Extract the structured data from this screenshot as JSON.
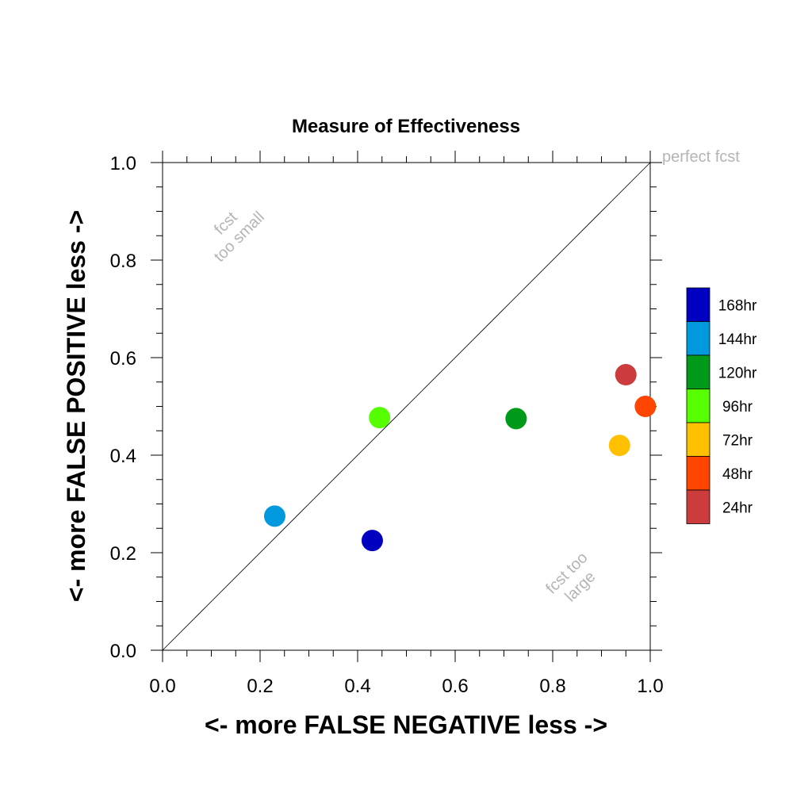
{
  "chart_data": {
    "type": "scatter",
    "title": "Measure of Effectiveness",
    "xlabel": "<- more   FALSE NEGATIVE   less ->",
    "ylabel": "<- more   FALSE POSITIVE   less ->",
    "xlim": [
      0.0,
      1.0
    ],
    "ylim": [
      0.0,
      1.0
    ],
    "x_ticks": [
      "0.0",
      "0.2",
      "0.4",
      "0.6",
      "0.8",
      "1.0"
    ],
    "y_ticks": [
      "0.0",
      "0.2",
      "0.4",
      "0.6",
      "0.8",
      "1.0"
    ],
    "grid": false,
    "diagonal_line": true,
    "legend_placement": "right",
    "annotations": {
      "perfect": "perfect fcst",
      "too_small": [
        "fcst",
        "too small"
      ],
      "too_large": [
        "fcst too",
        "large"
      ]
    },
    "series": [
      {
        "name": "168hr",
        "color": "#0000c0",
        "x": 0.43,
        "y": 0.225
      },
      {
        "name": "144hr",
        "color": "#0099dd",
        "x": 0.23,
        "y": 0.275
      },
      {
        "name": "120hr",
        "color": "#009a1a",
        "x": 0.725,
        "y": 0.475
      },
      {
        "name": "96hr",
        "color": "#55ff00",
        "x": 0.445,
        "y": 0.477
      },
      {
        "name": "72hr",
        "color": "#ffc000",
        "x": 0.937,
        "y": 0.42
      },
      {
        "name": "48hr",
        "color": "#ff4500",
        "x": 0.99,
        "y": 0.5
      },
      {
        "name": "24hr",
        "color": "#cc3c3c",
        "x": 0.95,
        "y": 0.565
      }
    ]
  }
}
